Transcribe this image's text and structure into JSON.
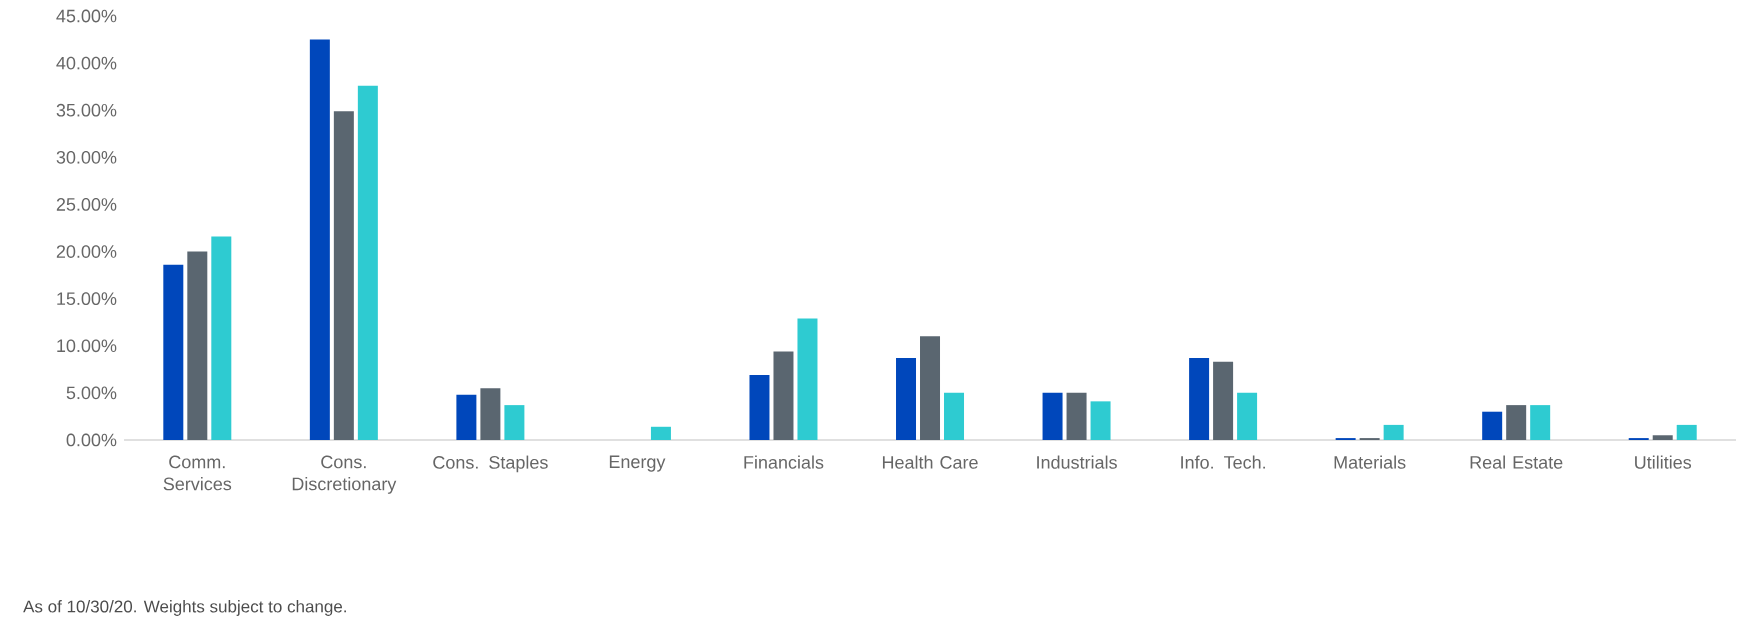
{
  "chart_data": {
    "type": "bar",
    "categories": [
      "Comm.\nServices",
      "Cons.\nDiscretionary",
      "Cons. Staples",
      "Energy",
      "Financials",
      "Health Care",
      "Industrials",
      "Info. Tech.",
      "Materials",
      "Real Estate",
      "Utilities"
    ],
    "series": [
      {
        "color": "#0047bb",
        "values": [
          18.6,
          42.5,
          4.8,
          0,
          6.9,
          8.7,
          5.0,
          8.7,
          0.2,
          3.0,
          0.2
        ]
      },
      {
        "color": "#5a6670",
        "values": [
          20.0,
          34.9,
          5.5,
          0,
          9.4,
          11.0,
          5.0,
          8.3,
          0.2,
          3.7,
          0.5
        ]
      },
      {
        "color": "#2ecbd1",
        "values": [
          21.6,
          37.6,
          3.7,
          1.4,
          12.9,
          5.0,
          4.1,
          5.0,
          1.6,
          3.7,
          1.6
        ]
      }
    ],
    "ylim": [
      0,
      45
    ],
    "yticks": [
      {
        "value": 0,
        "label": "0.00%"
      },
      {
        "value": 5,
        "label": "5.00%"
      },
      {
        "value": 10,
        "label": "10.00%"
      },
      {
        "value": 15,
        "label": "15.00%"
      },
      {
        "value": 20,
        "label": "20.00%"
      },
      {
        "value": 25,
        "label": "25.00%"
      },
      {
        "value": 30,
        "label": "30.00%"
      },
      {
        "value": 35,
        "label": "35.00%"
      },
      {
        "value": 40,
        "label": "40.00%"
      },
      {
        "value": 45,
        "label": "45.00%"
      }
    ],
    "annotations": [
      "As of 10/30/20. Weights subject to change."
    ]
  }
}
